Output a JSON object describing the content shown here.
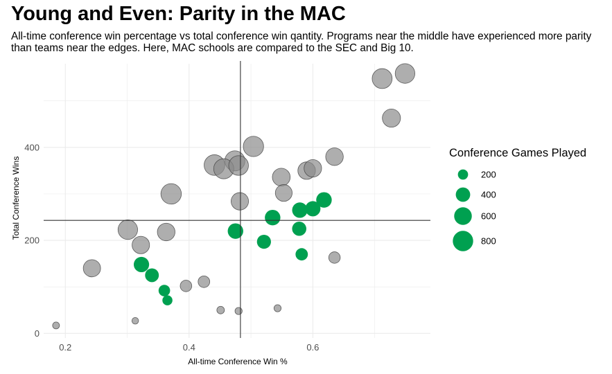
{
  "title": "Young and Even: Parity in the MAC",
  "subtitle": "All-time conference win percentage vs total conference win qantity. Programs near the middle have experienced more parity than teams near the edges. Here, MAC schools are compared to the SEC and Big 10.",
  "chart_data": {
    "type": "scatter",
    "xlabel": "All-time Conference Win %",
    "ylabel": "Total Conference Wins",
    "xlim": [
      0.165,
      0.79
    ],
    "ylim": [
      -10,
      580
    ],
    "x_ticks": [
      0.2,
      0.4,
      0.6
    ],
    "x_tick_labels": [
      "0.2",
      "0.4",
      "0.6"
    ],
    "y_ticks": [
      0,
      200,
      400
    ],
    "y_tick_labels": [
      "0",
      "200",
      "400"
    ],
    "grid": true,
    "reference_lines": {
      "vertical_x": 0.483,
      "horizontal_y": 243
    },
    "legend": {
      "title": "Conference Games Played",
      "position": "right",
      "sizes": [
        200,
        400,
        600,
        800
      ],
      "labels": [
        "200",
        "400",
        "600",
        "800"
      ]
    },
    "colors": {
      "mac": "#00a050",
      "other": "#8c8c8c",
      "other_stroke": "#3c3c3c",
      "reference_line": "#333333",
      "grid": "#ebebeb"
    },
    "series": [
      {
        "group": "mac",
        "points": [
          {
            "x": 0.323,
            "y": 148,
            "games": 455
          },
          {
            "x": 0.34,
            "y": 125,
            "games": 365
          },
          {
            "x": 0.36,
            "y": 92,
            "games": 256
          },
          {
            "x": 0.365,
            "y": 71,
            "games": 195
          },
          {
            "x": 0.475,
            "y": 220,
            "games": 463
          },
          {
            "x": 0.521,
            "y": 197,
            "games": 379
          },
          {
            "x": 0.535,
            "y": 249,
            "games": 465
          },
          {
            "x": 0.579,
            "y": 265,
            "games": 458
          },
          {
            "x": 0.578,
            "y": 225,
            "games": 389
          },
          {
            "x": 0.582,
            "y": 170,
            "games": 293
          },
          {
            "x": 0.6,
            "y": 268,
            "games": 447
          },
          {
            "x": 0.618,
            "y": 287,
            "games": 465
          }
        ]
      },
      {
        "group": "other",
        "points": [
          {
            "x": 0.185,
            "y": 17,
            "games": 92
          },
          {
            "x": 0.243,
            "y": 140,
            "games": 576
          },
          {
            "x": 0.301,
            "y": 223,
            "games": 741
          },
          {
            "x": 0.313,
            "y": 27,
            "games": 86
          },
          {
            "x": 0.322,
            "y": 190,
            "games": 590
          },
          {
            "x": 0.363,
            "y": 218,
            "games": 600
          },
          {
            "x": 0.371,
            "y": 300,
            "games": 809
          },
          {
            "x": 0.395,
            "y": 102,
            "games": 258
          },
          {
            "x": 0.424,
            "y": 111,
            "games": 262
          },
          {
            "x": 0.441,
            "y": 362,
            "games": 821
          },
          {
            "x": 0.451,
            "y": 50,
            "games": 111
          },
          {
            "x": 0.456,
            "y": 354,
            "games": 776
          },
          {
            "x": 0.474,
            "y": 371,
            "games": 783
          },
          {
            "x": 0.48,
            "y": 361,
            "games": 752
          },
          {
            "x": 0.48,
            "y": 48,
            "games": 100
          },
          {
            "x": 0.482,
            "y": 284,
            "games": 589
          },
          {
            "x": 0.504,
            "y": 402,
            "games": 798
          },
          {
            "x": 0.543,
            "y": 54,
            "games": 99
          },
          {
            "x": 0.549,
            "y": 336,
            "games": 612
          },
          {
            "x": 0.553,
            "y": 302,
            "games": 546
          },
          {
            "x": 0.59,
            "y": 350,
            "games": 593
          },
          {
            "x": 0.6,
            "y": 355,
            "games": 592
          },
          {
            "x": 0.635,
            "y": 380,
            "games": 598
          },
          {
            "x": 0.635,
            "y": 163,
            "games": 257
          },
          {
            "x": 0.712,
            "y": 548,
            "games": 769
          },
          {
            "x": 0.727,
            "y": 463,
            "games": 637
          },
          {
            "x": 0.749,
            "y": 559,
            "games": 746
          }
        ]
      }
    ]
  }
}
